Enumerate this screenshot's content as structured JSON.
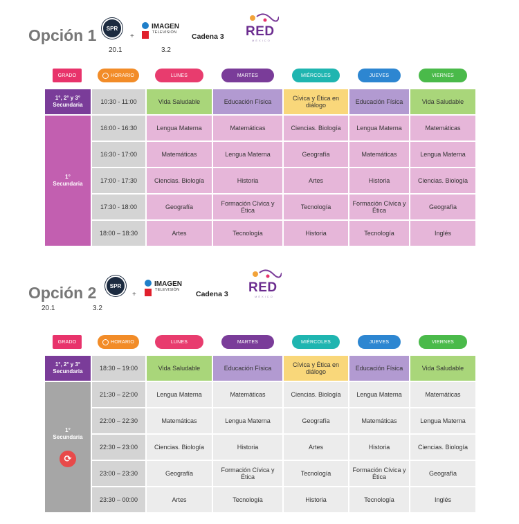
{
  "colors": {
    "grado": "#e8336b",
    "horario": "#f28c28",
    "lunes": "#e83c6e",
    "martes": "#7a3c99",
    "miercoles": "#1fb5b0",
    "jueves": "#2d86d1",
    "viernes": "#4aba4a",
    "purple_dark": "#7a3c99",
    "pink_light": "#e6b6d9",
    "pink_grade": "#c25fb0",
    "green_light": "#a9d67a",
    "violet_light": "#b29ad1",
    "yellow_light": "#f9d77a",
    "gray_light": "#ececec",
    "gray_grade": "#a6a6a6"
  },
  "header_labels": {
    "grado": "GRADO",
    "horario": "HORARIO",
    "days": [
      "LUNES",
      "MARTES",
      "MIÉRCOLES",
      "JUEVES",
      "VIERNES"
    ]
  },
  "logos": {
    "spr": "SPR",
    "plus": "+",
    "imagen_word": "IMAGEN",
    "imagen_sub": "TELEVISIÓN",
    "cadena": "Cadena 3",
    "red_word": "RED",
    "red_sub": "MÉXICO"
  },
  "options": [
    {
      "title": "Opción 1",
      "channel_spr": "20.1",
      "channel_imagen": "3.2",
      "all_grades_label": "1°, 2° y 3° Secundaria",
      "first_grade_label": "1° Secundaria",
      "rows": [
        {
          "time": "10:30 - 11:00",
          "cells": [
            "Vida Saludable",
            "Educación Física",
            "Cívica y Ética en diálogo",
            "Educación Física",
            "Vida Saludable"
          ]
        },
        {
          "time": "16:00 - 16:30",
          "cells": [
            "Lengua Materna",
            "Matemáticas",
            "Ciencias. Biología",
            "Lengua Materna",
            "Matemáticas"
          ]
        },
        {
          "time": "16:30 - 17:00",
          "cells": [
            "Matemáticas",
            "Lengua Materna",
            "Geografía",
            "Matemáticas",
            "Lengua Materna"
          ]
        },
        {
          "time": "17:00 - 17:30",
          "cells": [
            "Ciencias. Biología",
            "Historia",
            "Artes",
            "Historia",
            "Ciencias. Biología"
          ]
        },
        {
          "time": "17:30 - 18:00",
          "cells": [
            "Geografía",
            "Formación Cívica y Ética",
            "Tecnología",
            "Formación Cívica y Ética",
            "Geografía"
          ]
        },
        {
          "time": "18:00 – 18:30",
          "cells": [
            "Artes",
            "Tecnología",
            "Historia",
            "Tecnología",
            "Inglés"
          ]
        }
      ]
    },
    {
      "title": "Opción 2",
      "channel_spr": "20.1",
      "channel_imagen": "3.2",
      "all_grades_label": "1°, 2° y 3° Secundaria",
      "first_grade_label": "1° Secundaria",
      "rows": [
        {
          "time": "18:30 – 19:00",
          "cells": [
            "Vida Saludable",
            "Educación Física",
            "Cívica y Ética en diálogo",
            "Educación Física",
            "Vida Saludable"
          ]
        },
        {
          "time": "21:30 – 22:00",
          "cells": [
            "Lengua Materna",
            "Matemáticas",
            "Ciencias. Biología",
            "Lengua Materna",
            "Matemáticas"
          ]
        },
        {
          "time": "22:00 – 22:30",
          "cells": [
            "Matemáticas",
            "Lengua Materna",
            "Geografía",
            "Matemáticas",
            "Lengua Materna"
          ]
        },
        {
          "time": "22:30 – 23:00",
          "cells": [
            "Ciencias. Biología",
            "Historia",
            "Artes",
            "Historia",
            "Ciencias. Biología"
          ]
        },
        {
          "time": "23:00 – 23:30",
          "cells": [
            "Geografía",
            "Formación Cívica y Ética",
            "Tecnología",
            "Formación Cívica y Ética",
            "Geografía"
          ]
        },
        {
          "time": "23:30 – 00:00",
          "cells": [
            "Artes",
            "Tecnología",
            "Historia",
            "Tecnología",
            "Inglés"
          ]
        }
      ]
    }
  ]
}
